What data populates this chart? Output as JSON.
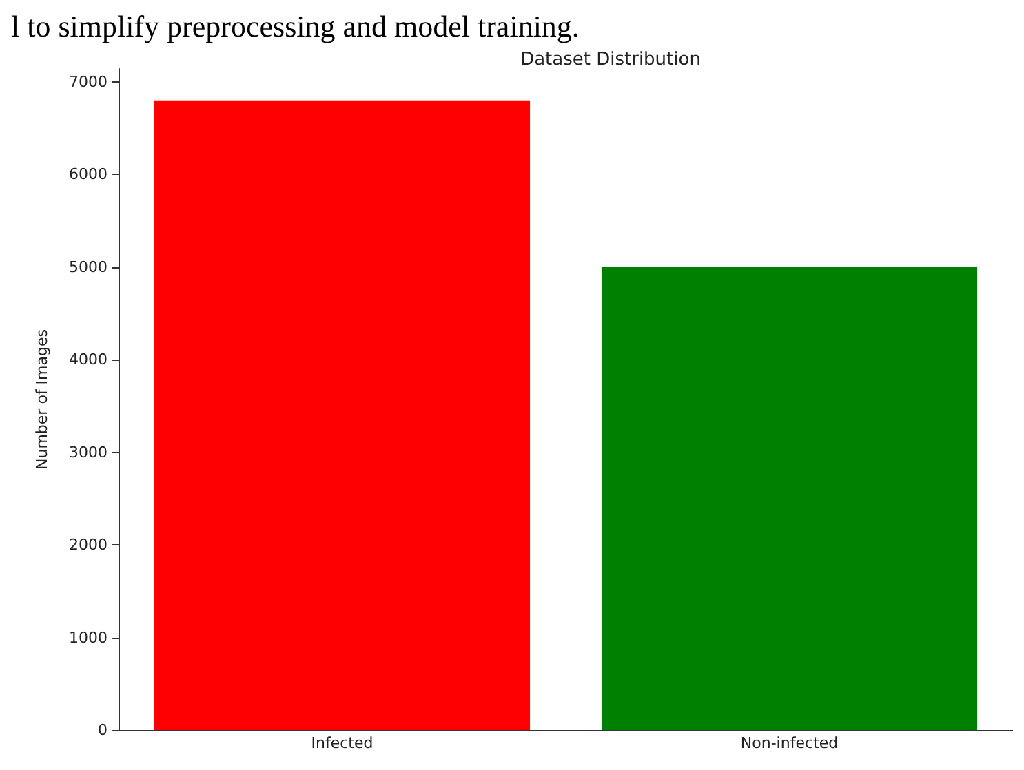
{
  "chart_data": {
    "type": "bar",
    "title": "Dataset Distribution",
    "ylabel": "Number of Images",
    "categories": [
      "Infected",
      "Non-infected"
    ],
    "values": [
      6800,
      5000
    ],
    "colors": [
      "#ff0000",
      "#008000"
    ],
    "ylim": [
      0,
      7140
    ],
    "yticks": [
      0,
      1000,
      2000,
      3000,
      4000,
      5000,
      6000,
      7000
    ],
    "grid": false,
    "annotations": [
      "l to simplify preprocessing and model training."
    ]
  }
}
